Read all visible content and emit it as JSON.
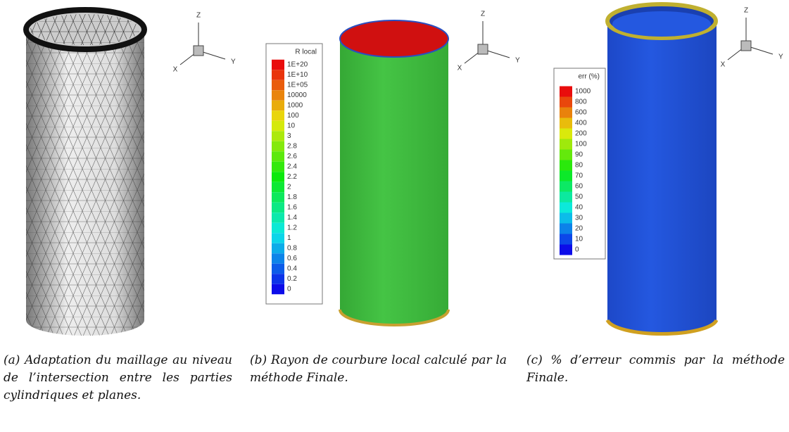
{
  "panels": [
    {
      "axes": {
        "x": "X",
        "y": "Y",
        "z": "Z"
      },
      "caption": {
        "label": "(a)",
        "text": "Adaptation du maillage au niveau de l’intersection entre les parties cylindriques et planes."
      }
    },
    {
      "axes": {
        "x": "X",
        "y": "Y",
        "z": "Z"
      },
      "legend": {
        "title": "R local",
        "entries": [
          "1E+20",
          "1E+10",
          "1E+05",
          "10000",
          "1000",
          "100",
          "10",
          "3",
          "2.8",
          "2.6",
          "2.4",
          "2.2",
          "2",
          "1.8",
          "1.6",
          "1.4",
          "1.2",
          "1",
          "0.8",
          "0.6",
          "0.4",
          "0.2",
          "0"
        ]
      },
      "caption": {
        "label": "(b)",
        "text": "Rayon de courbure local calculé par la méthode Finale."
      }
    },
    {
      "axes": {
        "x": "X",
        "y": "Y",
        "z": "Z"
      },
      "legend": {
        "title": "err (%)",
        "entries": [
          "1000",
          "800",
          "600",
          "400",
          "200",
          "100",
          "90",
          "80",
          "70",
          "60",
          "50",
          "40",
          "30",
          "20",
          "10",
          "0"
        ]
      },
      "caption": {
        "label": "(c)",
        "text": "% d’erreur commis par la méthode Finale."
      }
    }
  ]
}
